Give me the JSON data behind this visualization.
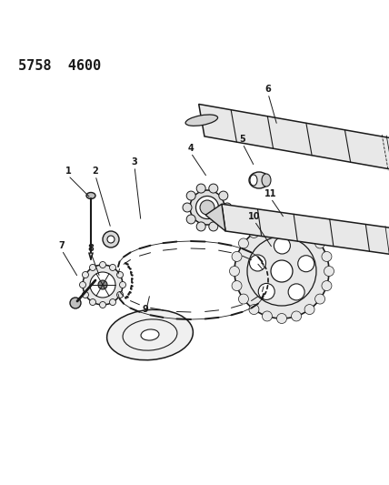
{
  "header_text": "5758  4600",
  "bg_color": "#ffffff",
  "line_color": "#1a1a1a",
  "figsize": [
    4.28,
    5.33
  ],
  "dpi": 100
}
